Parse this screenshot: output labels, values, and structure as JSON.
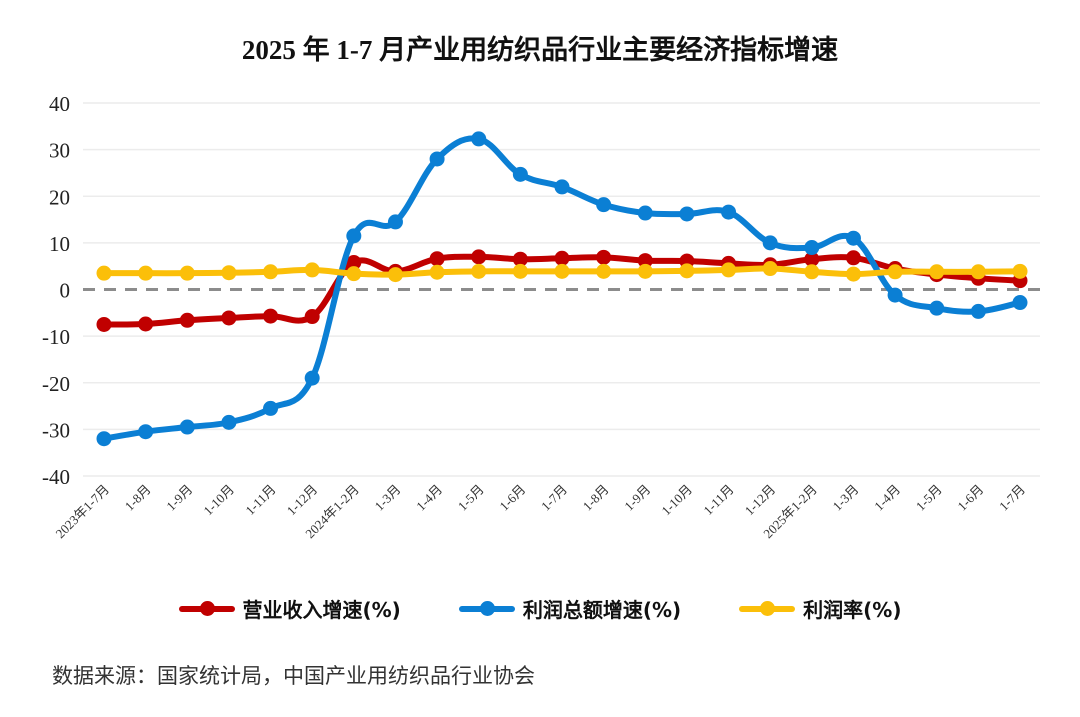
{
  "chart_data": {
    "type": "line",
    "title": "2025 年 1-7 月产业用纺织品行业主要经济指标增速",
    "categories": [
      "2023年1-7月",
      "1-8月",
      "1-9月",
      "1-10月",
      "1-11月",
      "1-12月",
      "2024年1-2月",
      "1-3月",
      "1-4月",
      "1-5月",
      "1-6月",
      "1-7月",
      "1-8月",
      "1-9月",
      "1-10月",
      "1-11月",
      "1-12月",
      "2025年1-2月",
      "1-3月",
      "1-4月",
      "1-5月",
      "1-6月",
      "1-7月"
    ],
    "ylim": [
      -40,
      40
    ],
    "yticks": [
      "40",
      "30",
      "20",
      "10",
      "0",
      "-10",
      "-20",
      "-30",
      "-40"
    ],
    "grid": true,
    "zero_line": "dashed",
    "legend_position": "bottom",
    "series": [
      {
        "name": "营业收入增速(%)",
        "color": "#c00000",
        "values": [
          -7.5,
          -7.4,
          -6.6,
          -6.1,
          -5.7,
          -5.8,
          5.8,
          3.9,
          6.6,
          7.0,
          6.5,
          6.7,
          6.9,
          6.2,
          6.1,
          5.6,
          5.3,
          6.5,
          6.8,
          4.5,
          3.2,
          2.4,
          1.9
        ]
      },
      {
        "name": "利润总额增速(%)",
        "color": "#0b7fd4",
        "values": [
          -32.0,
          -30.5,
          -29.5,
          -28.5,
          -25.5,
          -19.0,
          11.5,
          14.5,
          28.0,
          32.3,
          24.7,
          22.0,
          18.2,
          16.4,
          16.2,
          16.6,
          10.0,
          9.0,
          11.0,
          -1.2,
          -4.0,
          -4.7,
          -2.8
        ]
      },
      {
        "name": "利润率(%)",
        "color": "#fbbf09",
        "values": [
          3.5,
          3.5,
          3.5,
          3.6,
          3.8,
          4.2,
          3.4,
          3.2,
          3.7,
          3.9,
          3.9,
          3.9,
          3.9,
          3.9,
          4.0,
          4.2,
          4.5,
          3.8,
          3.3,
          3.8,
          3.8,
          3.8,
          3.9
        ]
      }
    ]
  },
  "source": "数据来源：国家统计局，中国产业用纺织品行业协会"
}
